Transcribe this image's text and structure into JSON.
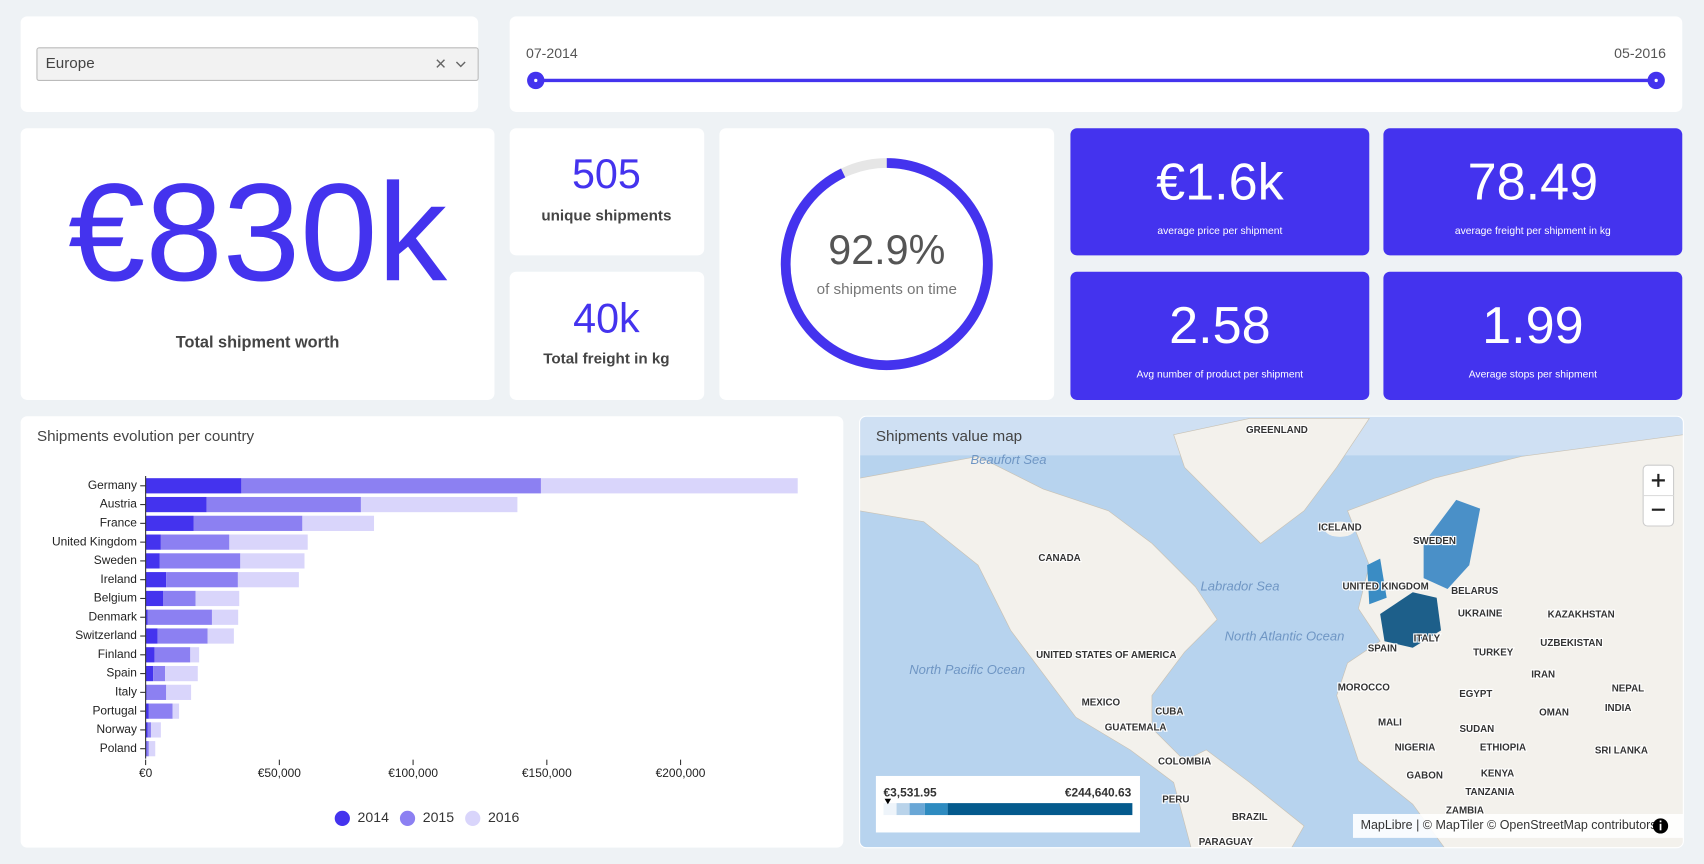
{
  "filter": {
    "value": "Europe"
  },
  "date_range": {
    "start": "07-2014",
    "end": "05-2016"
  },
  "kpis": {
    "total_worth": {
      "value": "€830k",
      "label": "Total shipment worth"
    },
    "unique_shipments": {
      "value": "505",
      "label": "unique shipments"
    },
    "total_freight": {
      "value": "40k",
      "label": "Total freight in kg"
    },
    "avg_price": {
      "value": "€1.6k",
      "label": "average price per shipment"
    },
    "avg_freight": {
      "value": "78.49",
      "label": "average freight per shipment in kg"
    },
    "avg_products": {
      "value": "2.58",
      "label": "Avg number of product per shipment"
    },
    "avg_stops": {
      "value": "1.99",
      "label": "Average stops per shipment"
    }
  },
  "gauge": {
    "value": 92.9,
    "value_label": "92.9%",
    "label": "of shipments on time"
  },
  "chart_data": {
    "type": "stacked-bar-horizontal",
    "title": "Shipments evolution per country",
    "categories": [
      "Germany",
      "Austria",
      "France",
      "United Kingdom",
      "Sweden",
      "Ireland",
      "Belgium",
      "Denmark",
      "Switzerland",
      "Finland",
      "Spain",
      "Italy",
      "Portugal",
      "Norway",
      "Poland"
    ],
    "series": [
      {
        "name": "2014",
        "color": "#4433ee",
        "values": [
          35800,
          22800,
          17900,
          5700,
          5300,
          7700,
          6500,
          800,
          4500,
          3300,
          2800,
          400,
          1200,
          800,
          400
        ]
      },
      {
        "name": "2015",
        "color": "#8c80f2",
        "values": [
          112000,
          57700,
          40700,
          25600,
          30100,
          26800,
          12200,
          24000,
          18700,
          13400,
          4500,
          7300,
          8900,
          1200,
          800
        ]
      },
      {
        "name": "2016",
        "color": "#d9d5fb",
        "values": [
          96000,
          58500,
          26800,
          29300,
          24000,
          22800,
          16300,
          9800,
          9800,
          3300,
          12200,
          9300,
          2400,
          3700,
          2400
        ]
      }
    ],
    "xlim": [
      0,
      245000
    ],
    "xticks": [
      {
        "value": 0,
        "label": "€0"
      },
      {
        "value": 50000,
        "label": "€50,000"
      },
      {
        "value": 100000,
        "label": "€100,000"
      },
      {
        "value": 150000,
        "label": "€150,000"
      },
      {
        "value": 200000,
        "label": "€200,000"
      }
    ],
    "legend": "bottom"
  },
  "map": {
    "title": "Shipments value map",
    "legend_min": "€3,531.95",
    "legend_max": "€244,640.63",
    "attribution": "MapLibre | © MapTiler © OpenStreetMap contributors",
    "labels": [
      "GREENLAND",
      "Beaufort Sea",
      "CANADA",
      "ICELAND",
      "SWEDEN",
      "UNITED KINGDOM",
      "BELARUS",
      "UKRAINE",
      "KAZAKHSTAN",
      "Labrador Sea",
      "North Atlantic Ocean",
      "UNITED STATES OF AMERICA",
      "North Pacific Ocean",
      "SPAIN",
      "ITALY",
      "TURKEY",
      "UZBEKISTAN",
      "IRAN",
      "MEXICO",
      "CUBA",
      "MOROCCO",
      "EGYPT",
      "NEPAL",
      "GUATEMALA",
      "MALI",
      "OMAN",
      "INDIA",
      "SUDAN",
      "NIGERIA",
      "ETHIOPIA",
      "SRI LANKA",
      "COLOMBIA",
      "GABON",
      "KENYA",
      "TANZANIA",
      "PERU",
      "BRAZIL",
      "ZAMBIA",
      "PARAGUAY"
    ]
  }
}
